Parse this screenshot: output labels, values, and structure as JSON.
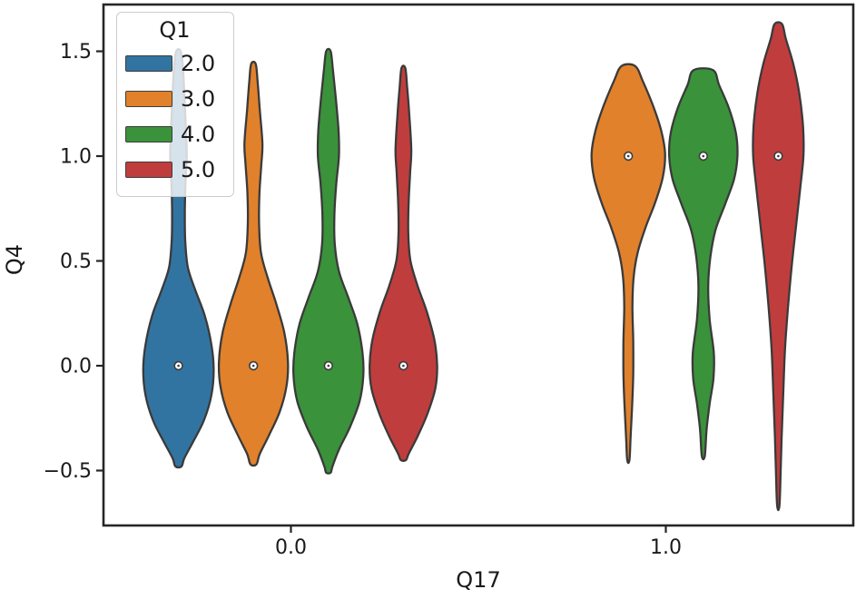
{
  "figure": {
    "background": "#ffffff",
    "spine_color": "#262626",
    "text_color": "#1a1a1a"
  },
  "axes": {
    "xlabel": "Q17",
    "ylabel": "Q4",
    "xlim": [
      -0.5,
      1.5
    ],
    "ylim": [
      -0.762,
      1.723
    ],
    "xticks": [
      {
        "value": 0.0,
        "label": "0.0"
      },
      {
        "value": 1.0,
        "label": "1.0"
      }
    ],
    "yticks": [
      {
        "value": 1.5,
        "label": "1.5"
      },
      {
        "value": 1.0,
        "label": "1.0"
      },
      {
        "value": 0.5,
        "label": "0.5"
      },
      {
        "value": 0.0,
        "label": "0.0"
      },
      {
        "value": -0.5,
        "label": "−0.5"
      }
    ],
    "grid": false
  },
  "legend": {
    "title": "Q1",
    "position": "upper-left",
    "entries": [
      {
        "label": "2.0",
        "color": "#3274a1"
      },
      {
        "label": "3.0",
        "color": "#e1812c"
      },
      {
        "label": "4.0",
        "color": "#3a923a"
      },
      {
        "label": "5.0",
        "color": "#c03d3e"
      }
    ]
  },
  "chart_data": {
    "type": "violin",
    "title": "",
    "xlabel": "Q17",
    "ylabel": "Q4",
    "x_categories": [
      "0.0",
      "1.0"
    ],
    "hue_title": "Q1",
    "hue_levels": [
      "2.0",
      "3.0",
      "4.0",
      "5.0"
    ],
    "edge_color": "#3a3a3a",
    "edge_width": 2.3,
    "median_marker": {
      "fill": "#ffffff",
      "edge": "#3d3d3d"
    },
    "violins": [
      {
        "group": "0.0",
        "hue": "2.0",
        "color": "#3274a1",
        "position": -0.3,
        "median": 0.0,
        "min": -0.48,
        "max": 1.5,
        "profile": [
          [
            1.5,
            0.006
          ],
          [
            1.42,
            0.012
          ],
          [
            1.28,
            0.016
          ],
          [
            1.12,
            0.02
          ],
          [
            1.0,
            0.022
          ],
          [
            0.88,
            0.019
          ],
          [
            0.74,
            0.017
          ],
          [
            0.6,
            0.018
          ],
          [
            0.47,
            0.025
          ],
          [
            0.36,
            0.045
          ],
          [
            0.24,
            0.07
          ],
          [
            0.1,
            0.088
          ],
          [
            -0.02,
            0.094
          ],
          [
            -0.14,
            0.088
          ],
          [
            -0.26,
            0.068
          ],
          [
            -0.36,
            0.04
          ],
          [
            -0.44,
            0.016
          ],
          [
            -0.48,
            0.008
          ]
        ]
      },
      {
        "group": "0.0",
        "hue": "3.0",
        "color": "#e1812c",
        "position": -0.1,
        "median": 0.0,
        "min": -0.47,
        "max": 1.44,
        "profile": [
          [
            1.44,
            0.006
          ],
          [
            1.36,
            0.011
          ],
          [
            1.22,
            0.017
          ],
          [
            1.06,
            0.024
          ],
          [
            0.96,
            0.021
          ],
          [
            0.82,
            0.016
          ],
          [
            0.68,
            0.015
          ],
          [
            0.54,
            0.02
          ],
          [
            0.42,
            0.038
          ],
          [
            0.3,
            0.06
          ],
          [
            0.16,
            0.082
          ],
          [
            0.02,
            0.092
          ],
          [
            -0.1,
            0.088
          ],
          [
            -0.22,
            0.07
          ],
          [
            -0.33,
            0.042
          ],
          [
            -0.42,
            0.017
          ],
          [
            -0.47,
            0.008
          ]
        ]
      },
      {
        "group": "0.0",
        "hue": "4.0",
        "color": "#3a923a",
        "position": 0.1,
        "median": 0.0,
        "min": -0.51,
        "max": 1.5,
        "profile": [
          [
            1.5,
            0.006
          ],
          [
            1.41,
            0.012
          ],
          [
            1.27,
            0.02
          ],
          [
            1.12,
            0.027
          ],
          [
            1.0,
            0.028
          ],
          [
            0.87,
            0.021
          ],
          [
            0.72,
            0.016
          ],
          [
            0.58,
            0.017
          ],
          [
            0.45,
            0.028
          ],
          [
            0.33,
            0.052
          ],
          [
            0.2,
            0.077
          ],
          [
            0.06,
            0.091
          ],
          [
            -0.05,
            0.093
          ],
          [
            -0.17,
            0.083
          ],
          [
            -0.29,
            0.058
          ],
          [
            -0.4,
            0.028
          ],
          [
            -0.48,
            0.011
          ],
          [
            -0.51,
            0.006
          ]
        ]
      },
      {
        "group": "0.0",
        "hue": "5.0",
        "color": "#c03d3e",
        "position": 0.3,
        "median": 0.0,
        "min": -0.45,
        "max": 1.42,
        "profile": [
          [
            1.42,
            0.005
          ],
          [
            1.33,
            0.01
          ],
          [
            1.19,
            0.016
          ],
          [
            1.03,
            0.021
          ],
          [
            0.92,
            0.018
          ],
          [
            0.78,
            0.014
          ],
          [
            0.63,
            0.013
          ],
          [
            0.5,
            0.019
          ],
          [
            0.38,
            0.038
          ],
          [
            0.26,
            0.062
          ],
          [
            0.12,
            0.083
          ],
          [
            0.0,
            0.09
          ],
          [
            -0.11,
            0.085
          ],
          [
            -0.23,
            0.064
          ],
          [
            -0.34,
            0.037
          ],
          [
            -0.42,
            0.014
          ],
          [
            -0.45,
            0.007
          ]
        ]
      },
      {
        "group": "1.0",
        "hue": "3.0",
        "color": "#e1812c",
        "position": 0.9,
        "median": 1.0,
        "min": -0.45,
        "max": 1.43,
        "profile": [
          [
            1.43,
            0.018
          ],
          [
            1.36,
            0.038
          ],
          [
            1.24,
            0.066
          ],
          [
            1.12,
            0.088
          ],
          [
            1.01,
            0.098
          ],
          [
            0.9,
            0.092
          ],
          [
            0.78,
            0.072
          ],
          [
            0.66,
            0.046
          ],
          [
            0.54,
            0.025
          ],
          [
            0.42,
            0.014
          ],
          [
            0.28,
            0.011
          ],
          [
            0.12,
            0.013
          ],
          [
            -0.04,
            0.013
          ],
          [
            -0.2,
            0.01
          ],
          [
            -0.34,
            0.006
          ],
          [
            -0.45,
            0.003
          ]
        ]
      },
      {
        "group": "1.0",
        "hue": "4.0",
        "color": "#3a923a",
        "position": 1.1,
        "median": 1.0,
        "min": -0.43,
        "max": 1.41,
        "profile": [
          [
            1.41,
            0.026
          ],
          [
            1.34,
            0.042
          ],
          [
            1.23,
            0.068
          ],
          [
            1.11,
            0.087
          ],
          [
            1.0,
            0.091
          ],
          [
            0.89,
            0.082
          ],
          [
            0.77,
            0.058
          ],
          [
            0.65,
            0.033
          ],
          [
            0.52,
            0.019
          ],
          [
            0.38,
            0.013
          ],
          [
            0.22,
            0.017
          ],
          [
            0.06,
            0.028
          ],
          [
            -0.06,
            0.027
          ],
          [
            -0.18,
            0.017
          ],
          [
            -0.3,
            0.009
          ],
          [
            -0.43,
            0.004
          ]
        ]
      },
      {
        "group": "1.0",
        "hue": "5.0",
        "color": "#c03d3e",
        "position": 1.3,
        "median": 1.0,
        "min": -0.67,
        "max": 1.63,
        "profile": [
          [
            1.63,
            0.01
          ],
          [
            1.56,
            0.02
          ],
          [
            1.44,
            0.04
          ],
          [
            1.3,
            0.056
          ],
          [
            1.14,
            0.066
          ],
          [
            1.0,
            0.067
          ],
          [
            0.84,
            0.058
          ],
          [
            0.66,
            0.047
          ],
          [
            0.48,
            0.036
          ],
          [
            0.28,
            0.026
          ],
          [
            0.08,
            0.018
          ],
          [
            -0.14,
            0.013
          ],
          [
            -0.34,
            0.009
          ],
          [
            -0.52,
            0.006
          ],
          [
            -0.67,
            0.003
          ]
        ]
      }
    ]
  }
}
